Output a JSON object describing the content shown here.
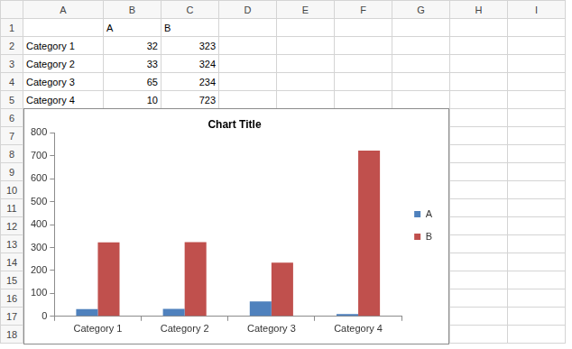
{
  "sheet": {
    "columns": [
      "A",
      "B",
      "C",
      "D",
      "E",
      "F",
      "G",
      "H",
      "I"
    ],
    "rows": [
      1,
      2,
      3,
      4,
      5,
      6,
      7,
      8,
      9,
      10,
      11,
      12,
      13,
      14,
      15,
      16,
      17,
      18
    ]
  },
  "chart_data": {
    "type": "bar",
    "title": "Chart Title",
    "categories": [
      "Category 1",
      "Category 2",
      "Category 3",
      "Category 4"
    ],
    "series": [
      {
        "name": "A",
        "color": "#4f81bd",
        "values": [
          32,
          33,
          65,
          10
        ]
      },
      {
        "name": "B",
        "color": "#c0504d",
        "values": [
          323,
          324,
          234,
          723
        ]
      }
    ],
    "ylim": [
      0,
      800
    ],
    "yticks": [
      0,
      100,
      200,
      300,
      400,
      500,
      600,
      700,
      800
    ],
    "grid": false,
    "legend": "right"
  }
}
